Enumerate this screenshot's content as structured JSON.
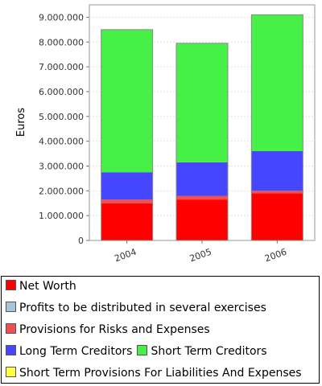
{
  "chart_data": {
    "type": "bar",
    "stacked": true,
    "categories": [
      "2004",
      "2005",
      "2006"
    ],
    "ylabel": "Euros",
    "ylim": [
      0,
      9500000
    ],
    "y_ticks": [
      "0",
      "1.000.000",
      "2.000.000",
      "3.000.000",
      "4.000.000",
      "5.000.000",
      "6.000.000",
      "7.000.000",
      "8.000.000",
      "9.000.000"
    ],
    "grid": true,
    "legend_position": "bottom",
    "series": [
      {
        "name": "Net Worth",
        "color": "#ff0000",
        "values": [
          1500000,
          1650000,
          1900000
        ]
      },
      {
        "name": "Profits to be distributed in several exercises",
        "color": "#a8c4d8",
        "values": [
          0,
          0,
          0
        ]
      },
      {
        "name": "Provisions for Risks and Expenses",
        "color": "#f05050",
        "values": [
          150000,
          150000,
          100000
        ]
      },
      {
        "name": "Long Term Creditors",
        "color": "#4646ff",
        "values": [
          1100000,
          1350000,
          1600000
        ]
      },
      {
        "name": "Short Term Creditors",
        "color": "#46f046",
        "values": [
          5750000,
          4800000,
          5500000
        ]
      },
      {
        "name": "Short Term Provisions For Liabilities And Expenses",
        "color": "#ffff46",
        "values": [
          0,
          0,
          0
        ]
      }
    ]
  },
  "legend": {
    "rows": [
      [
        "Net Worth"
      ],
      [
        "Profits to be distributed in several exercises"
      ],
      [
        "Provisions for Risks and Expenses"
      ],
      [
        "Long Term Creditors",
        "Short Term Creditors"
      ],
      [
        "Short Term Provisions For Liabilities And Expenses"
      ]
    ]
  }
}
